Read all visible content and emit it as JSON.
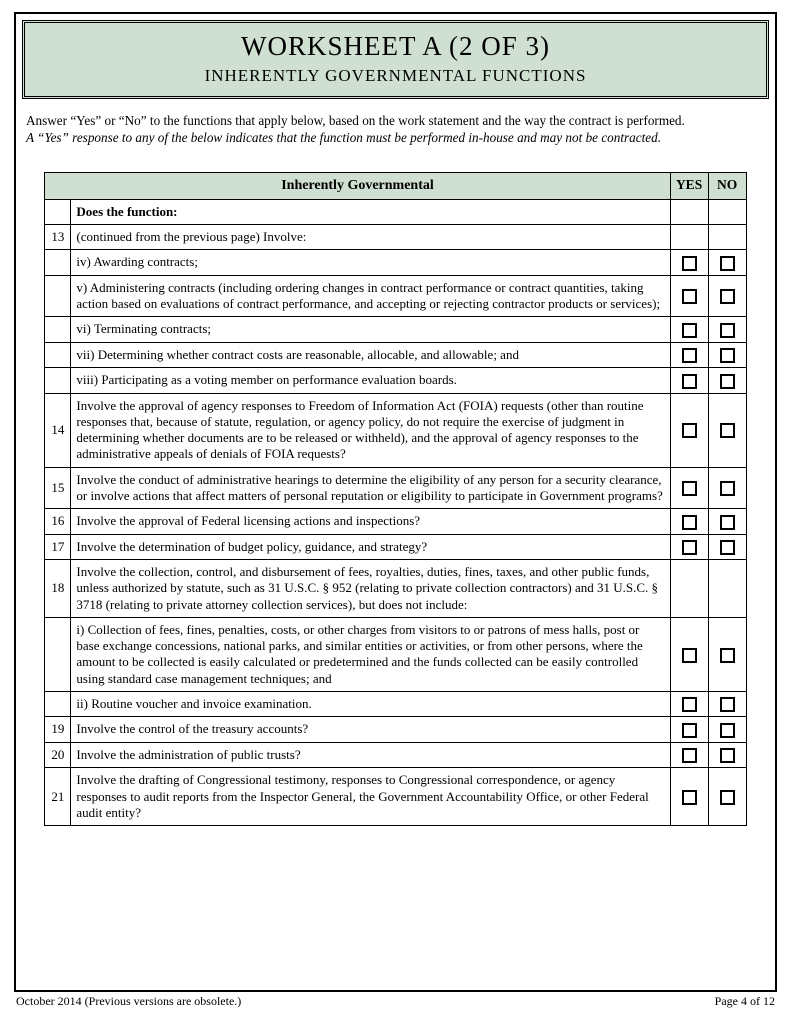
{
  "title_box": {
    "line1": "WORKSHEET A (2 OF 3)",
    "line2": "INHERENTLY GOVERNMENTAL FUNCTIONS"
  },
  "instructions": {
    "line1": "Answer “Yes” or “No” to the functions that apply below, based on the work statement and the way the contract is performed.",
    "line2": "A “Yes” response to any of the below indicates that the function must be performed in-house and may not be contracted."
  },
  "table": {
    "header_main": "Inherently Governmental",
    "header_yes": "YES",
    "header_no": "NO",
    "section_label": "Does the function:",
    "rows": [
      {
        "num": "13",
        "text": "(continued from the previous page) Involve:",
        "checks": false
      },
      {
        "num": "",
        "text": "iv) Awarding contracts;",
        "checks": true
      },
      {
        "num": "",
        "text": "v) Administering contracts (including ordering changes in contract performance or contract quantities, taking action based on evaluations of contract performance, and accepting or rejecting contractor products or services);",
        "checks": true
      },
      {
        "num": "",
        "text": "vi) Terminating contracts;",
        "checks": true
      },
      {
        "num": "",
        "text": "vii) Determining whether contract costs are reasonable, allocable, and allowable; and",
        "checks": true
      },
      {
        "num": "",
        "text": "viii) Participating as a voting member on performance evaluation boards.",
        "checks": true
      },
      {
        "num": "14",
        "text": "Involve the approval of agency responses to Freedom of Information Act (FOIA) requests (other than routine responses that, because of statute, regulation, or agency policy, do not require the exercise of judgment in determining whether documents are to be released or withheld), and the approval of agency responses to the administrative appeals of denials of FOIA requests?",
        "checks": true
      },
      {
        "num": "15",
        "text": "Involve the conduct of administrative hearings to determine the eligibility of any person for a security clearance, or involve actions that affect matters of personal reputation or eligibility to participate in Government programs?",
        "checks": true
      },
      {
        "num": "16",
        "text": "Involve the approval of Federal licensing actions and inspections?",
        "checks": true
      },
      {
        "num": "17",
        "text": "Involve the determination of budget policy, guidance, and strategy?",
        "checks": true
      },
      {
        "num": "18",
        "text": "Involve the collection, control, and disbursement of fees, royalties, duties, fines, taxes, and other public funds, unless authorized by statute, such as 31 U.S.C. § 952 (relating to private collection contractors) and 31 U.S.C. § 3718 (relating to private attorney collection services), but does not include:",
        "checks": false
      },
      {
        "num": "",
        "text": "i) Collection of fees, fines, penalties, costs, or other charges from visitors to or patrons of mess halls, post or base exchange concessions, national parks, and similar entities or activities, or from other persons, where the amount to be collected is easily calculated or predetermined and the funds collected can be easily controlled using standard case management techniques; and",
        "checks": true
      },
      {
        "num": "",
        "text": "ii) Routine voucher and invoice examination.",
        "checks": true
      },
      {
        "num": "19",
        "text": "Involve the control of the treasury accounts?",
        "checks": true
      },
      {
        "num": "20",
        "text": "Involve the administration of public trusts?",
        "checks": true
      },
      {
        "num": "21",
        "text": "Involve the drafting of Congressional testimony, responses to Congressional correspondence, or agency responses to audit reports from the Inspector General, the Government Accountability Office, or other Federal audit entity?",
        "checks": true
      }
    ]
  },
  "footer": {
    "left": "October 2014 (Previous versions are obsolete.)",
    "right": "Page 4 of 12"
  },
  "colors": {
    "header_bg": "#cfe0d2",
    "border": "#000000",
    "text": "#000000"
  }
}
